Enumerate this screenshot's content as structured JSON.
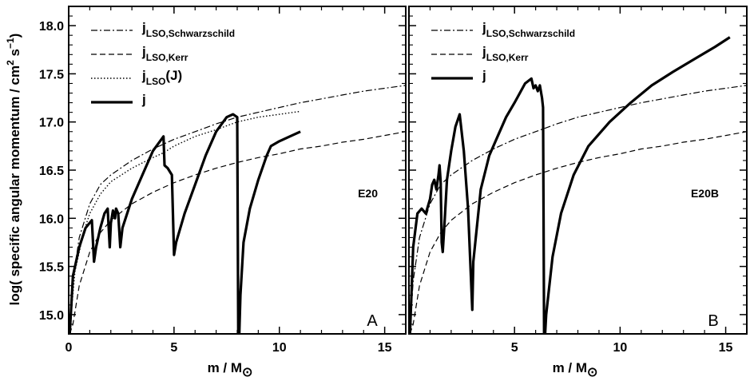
{
  "figure": {
    "ylabel_prefix": "log( specific angular momentum / cm",
    "ylabel_sup1": "2",
    "ylabel_mid": " s",
    "ylabel_sup2": "−1",
    "ylabel_suffix": ")",
    "xlabel_main": "m / M",
    "xlabel_sub": "⊙"
  },
  "chart_data": [
    {
      "type": "line",
      "panel_letter": "A",
      "model_tag": "E20",
      "xlim": [
        0,
        16
      ],
      "ylim": [
        14.8,
        18.2
      ],
      "x_ticks": [
        0,
        5,
        10,
        15
      ],
      "y_ticks": [
        15.0,
        15.5,
        16.0,
        16.5,
        17.0,
        17.5,
        18.0
      ],
      "y_tick_labels": [
        "15.0",
        "15.5",
        "16.0",
        "16.5",
        "17.0",
        "17.5",
        "18.0"
      ],
      "x_tick_labels": [
        "0",
        "5",
        "10",
        "15"
      ],
      "legend": [
        {
          "main": "j",
          "sub": "LSO,Schwarzschild",
          "suffix": "",
          "dash": "dashdot",
          "width": 1.2
        },
        {
          "main": "j",
          "sub": "LSO,Kerr",
          "suffix": "",
          "dash": "dashed",
          "width": 1.2
        },
        {
          "main": "j",
          "sub": "LSO",
          "suffix": "(J)",
          "dash": "dotted",
          "width": 1.4
        },
        {
          "main": "j",
          "sub": "",
          "suffix": "",
          "dash": "solid",
          "width": 3.2
        }
      ],
      "series": [
        {
          "dash": "dashdot",
          "width": 1.2,
          "x": [
            0.05,
            0.2,
            0.5,
            1,
            1.5,
            2,
            3,
            4,
            5,
            6,
            7,
            8,
            9,
            10,
            11,
            12,
            13,
            14,
            15,
            16
          ],
          "y": [
            14.85,
            15.35,
            15.8,
            16.15,
            16.35,
            16.45,
            16.6,
            16.72,
            16.82,
            16.9,
            16.98,
            17.05,
            17.1,
            17.15,
            17.2,
            17.24,
            17.28,
            17.32,
            17.35,
            17.38
          ]
        },
        {
          "dash": "dashed",
          "width": 1.2,
          "x": [
            0.05,
            0.2,
            0.5,
            1,
            1.5,
            2,
            3,
            4,
            5,
            6,
            7,
            8,
            9,
            10,
            11,
            12,
            13,
            14,
            15,
            16
          ],
          "y": [
            14.8,
            14.9,
            15.3,
            15.65,
            15.85,
            15.98,
            16.15,
            16.27,
            16.37,
            16.45,
            16.52,
            16.58,
            16.63,
            16.67,
            16.72,
            16.75,
            16.79,
            16.82,
            16.86,
            16.9
          ]
        },
        {
          "dash": "dotted",
          "width": 1.4,
          "x": [
            0.05,
            0.3,
            0.7,
            1,
            1.5,
            2,
            3,
            4,
            4.5,
            5,
            6,
            7,
            7.5,
            8,
            9,
            10,
            11
          ],
          "y": [
            14.85,
            15.45,
            15.85,
            16.05,
            16.25,
            16.38,
            16.52,
            16.63,
            16.68,
            16.75,
            16.85,
            16.92,
            16.96,
            17.0,
            17.05,
            17.08,
            17.11
          ]
        },
        {
          "dash": "solid",
          "width": 3.2,
          "x": [
            0.05,
            0.2,
            0.5,
            0.8,
            1.1,
            1.2,
            1.3,
            1.5,
            1.7,
            1.85,
            1.95,
            2.0,
            2.1,
            2.2,
            2.25,
            2.35,
            2.45,
            2.55,
            3.0,
            3.5,
            4.0,
            4.5,
            4.55,
            4.7,
            4.9,
            5.0,
            5.1,
            5.5,
            6.0,
            6.5,
            7.0,
            7.5,
            7.8,
            8.0,
            8.05,
            8.1,
            8.15,
            8.3,
            8.6,
            9.0,
            9.4,
            9.6,
            10.0,
            10.5,
            11.0
          ],
          "y": [
            14.8,
            15.4,
            15.7,
            15.9,
            15.98,
            15.55,
            15.7,
            15.9,
            16.05,
            16.1,
            15.7,
            15.95,
            16.08,
            16.0,
            16.1,
            16.05,
            15.7,
            15.9,
            16.2,
            16.45,
            16.7,
            16.85,
            16.55,
            16.52,
            16.45,
            15.62,
            15.75,
            16.05,
            16.35,
            16.65,
            16.9,
            17.05,
            17.08,
            17.05,
            14.8,
            14.8,
            15.2,
            15.75,
            16.1,
            16.4,
            16.65,
            16.75,
            16.8,
            16.85,
            16.9
          ]
        }
      ]
    },
    {
      "type": "line",
      "panel_letter": "B",
      "model_tag": "E20B",
      "xlim": [
        0,
        16
      ],
      "ylim": [
        14.8,
        18.2
      ],
      "x_ticks": [
        0,
        5,
        10,
        15
      ],
      "y_ticks": [
        15.0,
        15.5,
        16.0,
        16.5,
        17.0,
        17.5,
        18.0
      ],
      "x_tick_labels": [
        "",
        "5",
        "10",
        "15"
      ],
      "legend": [
        {
          "main": "j",
          "sub": "LSO,Schwarzschild",
          "suffix": "",
          "dash": "dashdot",
          "width": 1.2
        },
        {
          "main": "j",
          "sub": "LSO,Kerr",
          "suffix": "",
          "dash": "dashed",
          "width": 1.2
        },
        {
          "main": "j",
          "sub": "",
          "suffix": "",
          "dash": "solid",
          "width": 3.2
        }
      ],
      "series": [
        {
          "dash": "dashdot",
          "width": 1.2,
          "x": [
            0.05,
            0.2,
            0.5,
            1,
            1.5,
            2,
            3,
            4,
            5,
            6,
            7,
            8,
            9,
            10,
            11,
            12,
            13,
            14,
            15,
            16
          ],
          "y": [
            14.85,
            15.35,
            15.8,
            16.15,
            16.35,
            16.45,
            16.6,
            16.72,
            16.82,
            16.9,
            16.98,
            17.05,
            17.1,
            17.15,
            17.2,
            17.24,
            17.28,
            17.32,
            17.35,
            17.38
          ]
        },
        {
          "dash": "dashed",
          "width": 1.2,
          "x": [
            0.05,
            0.2,
            0.5,
            1,
            1.5,
            2,
            3,
            4,
            5,
            6,
            7,
            8,
            9,
            10,
            11,
            12,
            13,
            14,
            15,
            16
          ],
          "y": [
            14.8,
            14.9,
            15.3,
            15.65,
            15.85,
            15.98,
            16.15,
            16.27,
            16.37,
            16.45,
            16.52,
            16.58,
            16.63,
            16.67,
            16.72,
            16.75,
            16.79,
            16.82,
            16.86,
            16.9
          ]
        },
        {
          "dash": "solid",
          "width": 3.2,
          "x": [
            0.05,
            0.2,
            0.4,
            0.6,
            0.8,
            1.0,
            1.1,
            1.2,
            1.3,
            1.4,
            1.45,
            1.5,
            1.55,
            1.6,
            1.7,
            1.8,
            2.0,
            2.2,
            2.4,
            2.6,
            2.8,
            3.0,
            3.05,
            3.4,
            3.8,
            4.2,
            4.6,
            5.0,
            5.5,
            5.8,
            5.9,
            6.0,
            6.1,
            6.2,
            6.3,
            6.35,
            6.4,
            6.45,
            6.5,
            6.8,
            7.2,
            7.8,
            8.5,
            9.5,
            10.5,
            11.5,
            12.5,
            13.5,
            14.5,
            15.2
          ],
          "y": [
            14.8,
            15.7,
            16.05,
            16.1,
            16.05,
            16.2,
            16.35,
            16.4,
            16.3,
            16.45,
            16.55,
            16.38,
            15.75,
            15.65,
            16.0,
            16.4,
            16.7,
            16.95,
            17.08,
            16.7,
            16.1,
            15.05,
            15.55,
            16.3,
            16.65,
            16.85,
            17.05,
            17.2,
            17.4,
            17.45,
            17.35,
            17.38,
            17.32,
            17.38,
            17.25,
            17.15,
            14.8,
            14.8,
            15.0,
            15.6,
            16.05,
            16.45,
            16.75,
            17.0,
            17.2,
            17.38,
            17.52,
            17.65,
            17.78,
            17.88
          ]
        }
      ]
    }
  ]
}
